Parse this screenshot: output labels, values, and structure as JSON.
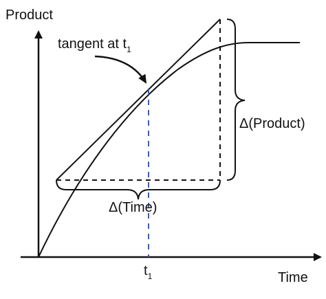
{
  "labels": {
    "y_axis": "Product",
    "x_axis": "Time",
    "tangent_text": "tangent at t",
    "tangent_sub": "1",
    "t_text": "t",
    "t_sub": "1",
    "delta_product": "Δ(Product)",
    "delta_time": "Δ(Time)"
  },
  "colors": {
    "ink": "#111111",
    "t1_marker": "#2f5fd0",
    "background": "#ffffff"
  }
}
